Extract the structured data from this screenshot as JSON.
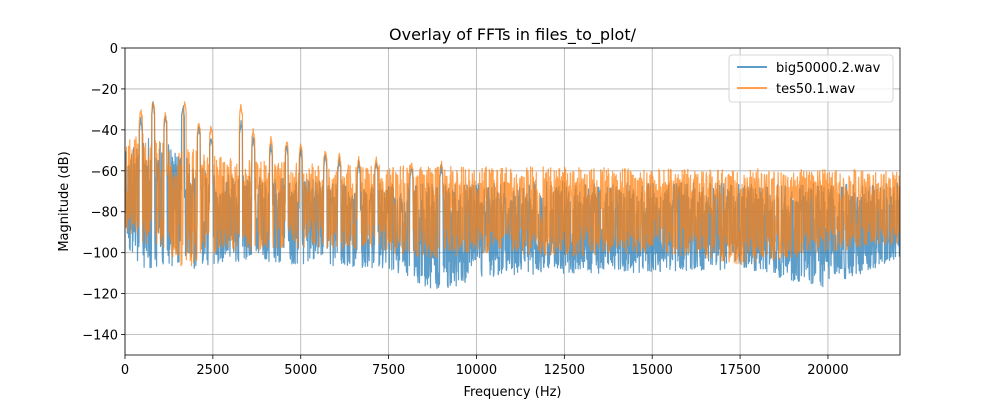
{
  "chart_data": {
    "type": "line",
    "title": "Overlay of FFTs in files_to_plot/",
    "xlabel": "Frequency (Hz)",
    "ylabel": "Magnitude (dB)",
    "xlim": [
      0,
      22050
    ],
    "ylim": [
      -150,
      0
    ],
    "xticks": [
      0,
      2500,
      5000,
      7500,
      10000,
      12500,
      15000,
      17500,
      20000
    ],
    "yticks": [
      0,
      -20,
      -40,
      -60,
      -80,
      -100,
      -120,
      -140
    ],
    "xtick_labels": [
      "0",
      "2500",
      "5000",
      "7500",
      "10000",
      "12500",
      "15000",
      "17500",
      "20000"
    ],
    "ytick_labels": [
      "0",
      "−20",
      "−40",
      "−60",
      "−80",
      "−100",
      "−120",
      "−140"
    ],
    "grid": true,
    "legend_position": "top-right",
    "series": [
      {
        "name": "big50000.2.wav",
        "color": "#1f77b4",
        "upper_envelope": [
          [
            0,
            -50
          ],
          [
            400,
            -48
          ],
          [
            800,
            -42
          ],
          [
            1200,
            -46
          ],
          [
            1600,
            -50
          ],
          [
            2000,
            -58
          ],
          [
            2500,
            -60
          ],
          [
            3000,
            -62
          ],
          [
            4000,
            -63
          ],
          [
            5000,
            -64
          ],
          [
            7500,
            -66
          ],
          [
            10000,
            -66
          ],
          [
            12500,
            -65
          ],
          [
            15000,
            -66
          ],
          [
            17500,
            -66
          ],
          [
            20000,
            -66
          ],
          [
            22050,
            -66
          ]
        ],
        "lower_envelope": [
          [
            0,
            -95
          ],
          [
            400,
            -110
          ],
          [
            1000,
            -106
          ],
          [
            2000,
            -108
          ],
          [
            3000,
            -104
          ],
          [
            5000,
            -106
          ],
          [
            7500,
            -108
          ],
          [
            9000,
            -120
          ],
          [
            10000,
            -112
          ],
          [
            12500,
            -110
          ],
          [
            15000,
            -110
          ],
          [
            17500,
            -108
          ],
          [
            19000,
            -114
          ],
          [
            20000,
            -118
          ],
          [
            22050,
            -102
          ]
        ],
        "peaks": [
          [
            450,
            -35
          ],
          [
            800,
            -27
          ],
          [
            1150,
            -33
          ],
          [
            1650,
            -28
          ],
          [
            2100,
            -38
          ],
          [
            2450,
            -43
          ],
          [
            3300,
            -36
          ],
          [
            3650,
            -44
          ],
          [
            4150,
            -48
          ],
          [
            4600,
            -48
          ],
          [
            5000,
            -50
          ],
          [
            5700,
            -52
          ],
          [
            6100,
            -54
          ],
          [
            6650,
            -56
          ],
          [
            7150,
            -56
          ],
          [
            8150,
            -58
          ],
          [
            9000,
            -58
          ]
        ]
      },
      {
        "name": "tes50.1.wav",
        "color": "#ff7f0e",
        "upper_envelope": [
          [
            0,
            -45
          ],
          [
            400,
            -42
          ],
          [
            800,
            -40
          ],
          [
            1200,
            -44
          ],
          [
            1600,
            -45
          ],
          [
            2000,
            -50
          ],
          [
            2500,
            -52
          ],
          [
            3000,
            -54
          ],
          [
            4000,
            -55
          ],
          [
            5000,
            -56
          ],
          [
            7500,
            -57
          ],
          [
            10000,
            -58
          ],
          [
            12500,
            -58
          ],
          [
            15000,
            -59
          ],
          [
            17500,
            -59
          ],
          [
            20000,
            -59
          ],
          [
            22050,
            -60
          ]
        ],
        "lower_envelope": [
          [
            0,
            -88
          ],
          [
            400,
            -95
          ],
          [
            1000,
            -96
          ],
          [
            1700,
            -109
          ],
          [
            2500,
            -100
          ],
          [
            5000,
            -98
          ],
          [
            7500,
            -100
          ],
          [
            9000,
            -104
          ],
          [
            10000,
            -100
          ],
          [
            12500,
            -102
          ],
          [
            15000,
            -100
          ],
          [
            17500,
            -106
          ],
          [
            20000,
            -100
          ],
          [
            22050,
            -96
          ]
        ],
        "peaks": [
          [
            450,
            -30
          ],
          [
            800,
            -26
          ],
          [
            1150,
            -32
          ],
          [
            1700,
            -26
          ],
          [
            2100,
            -36
          ],
          [
            2450,
            -38
          ],
          [
            3300,
            -28
          ],
          [
            3650,
            -40
          ],
          [
            4150,
            -44
          ],
          [
            4600,
            -45
          ],
          [
            5000,
            -47
          ],
          [
            5700,
            -50
          ],
          [
            6100,
            -52
          ],
          [
            6650,
            -54
          ],
          [
            7150,
            -54
          ],
          [
            8150,
            -56
          ],
          [
            9000,
            -56
          ]
        ]
      }
    ]
  }
}
